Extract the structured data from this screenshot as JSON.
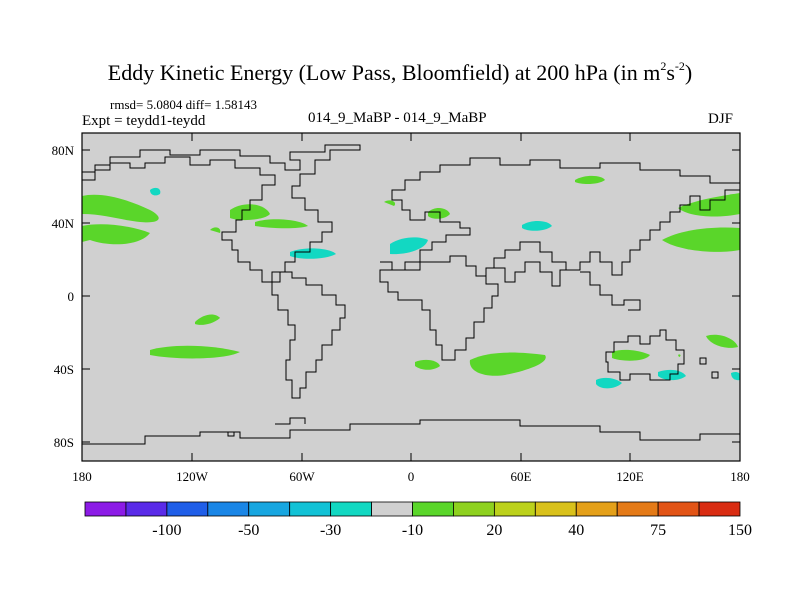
{
  "title": {
    "main": "Eddy Kinetic Energy (Low Pass, Bloomfield) at 200 hPa (in m",
    "sup1": "2",
    "mid": "s",
    "sup2": "-2",
    "end": ")"
  },
  "stats": "rmsd= 5.0804 diff= 1.58143",
  "expt": "Expt = teydd1-teydd",
  "case": "014_9_MaBP - 014_9_MaBP",
  "season": "DJF",
  "lat_labels": [
    "80N",
    "40N",
    "0",
    "40S",
    "80S"
  ],
  "lon_labels": [
    "180",
    "120W",
    "60W",
    "0",
    "60E",
    "120E",
    "180"
  ],
  "colorbar": {
    "colors": [
      "#8c1be6",
      "#5a2be8",
      "#1f5ee8",
      "#1a86e6",
      "#17a6e0",
      "#12c2d6",
      "#12d8c2",
      "#d0d0d0",
      "#5ad62a",
      "#8ed11f",
      "#bcd11b",
      "#d9c11b",
      "#e4a019",
      "#e47a17",
      "#e25416",
      "#d92c12"
    ],
    "labels": [
      "-100",
      "-50",
      "-30",
      "-10",
      "20",
      "40",
      "75",
      "150"
    ]
  },
  "colors": {
    "ocean": "#d0d0d0",
    "coast": "#000000"
  }
}
